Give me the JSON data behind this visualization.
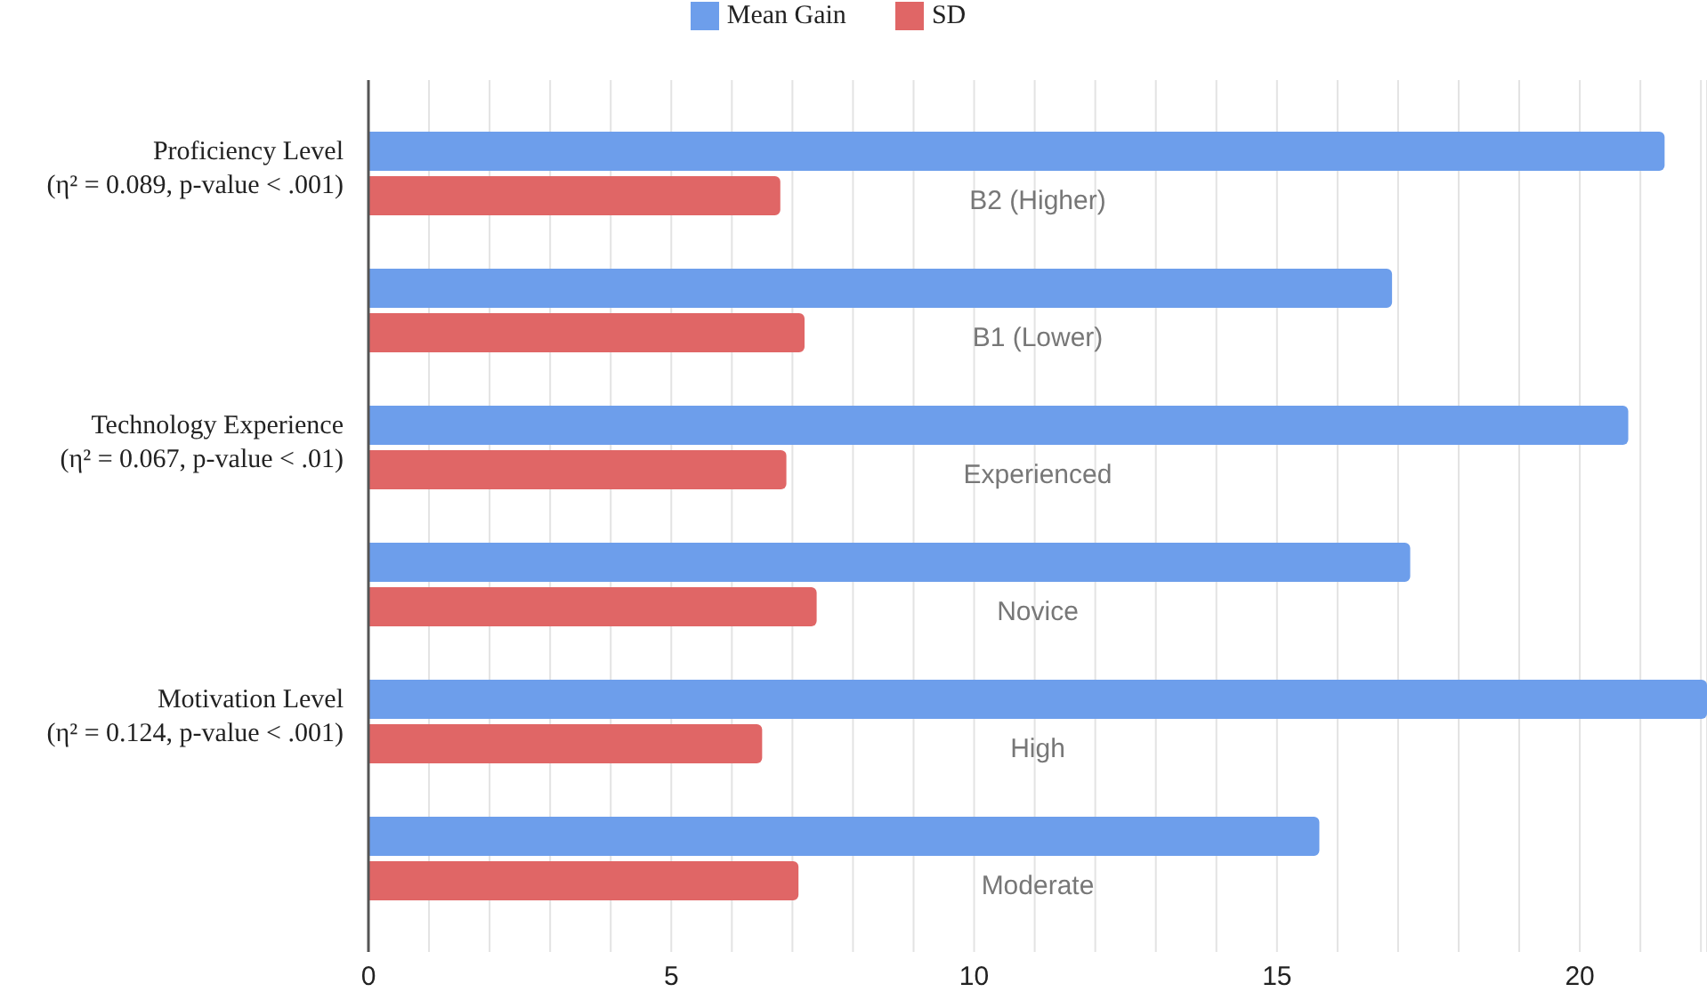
{
  "chart_data": {
    "type": "bar",
    "orientation": "horizontal",
    "categories": [
      "B2 (Higher)",
      "B1 (Lower)",
      "Experienced",
      "Novice",
      "High",
      "Moderate"
    ],
    "series": [
      {
        "name": "Mean Gain",
        "color": "#6d9eeb",
        "values": [
          21.4,
          16.9,
          20.8,
          17.2,
          22.1,
          15.7
        ]
      },
      {
        "name": "SD",
        "color": "#e06666",
        "values": [
          6.8,
          7.2,
          6.9,
          7.4,
          6.5,
          7.1
        ]
      }
    ],
    "xlim": [
      0,
      22.1
    ],
    "xticks": [
      0,
      {
        "value": 1,
        "label": null
      },
      {
        "value": 2,
        "label": null
      },
      {
        "value": 3,
        "label": null
      },
      {
        "value": 4,
        "label": null
      },
      5,
      {
        "value": 6,
        "label": null
      },
      {
        "value": 7,
        "label": null
      },
      {
        "value": 8,
        "label": null
      },
      {
        "value": 9,
        "label": null
      },
      10,
      {
        "value": 11,
        "label": null
      },
      {
        "value": 12,
        "label": null
      },
      {
        "value": 13,
        "label": null
      },
      {
        "value": 14,
        "label": null
      },
      15,
      {
        "value": 16,
        "label": null
      },
      {
        "value": 17,
        "label": null
      },
      {
        "value": 18,
        "label": null
      },
      {
        "value": 19,
        "label": null
      },
      20,
      {
        "value": 21,
        "label": null
      },
      {
        "value": 22,
        "label": null
      }
    ],
    "annotations": [
      "Proficiency Level\n(η² = 0.089, p-value < .001)",
      "Technology Experience\n(η² = 0.067, p-value < .01)",
      "Motivation Level\n(η² = 0.124, p-value < .001)"
    ],
    "grid": "x",
    "legend": "top"
  }
}
